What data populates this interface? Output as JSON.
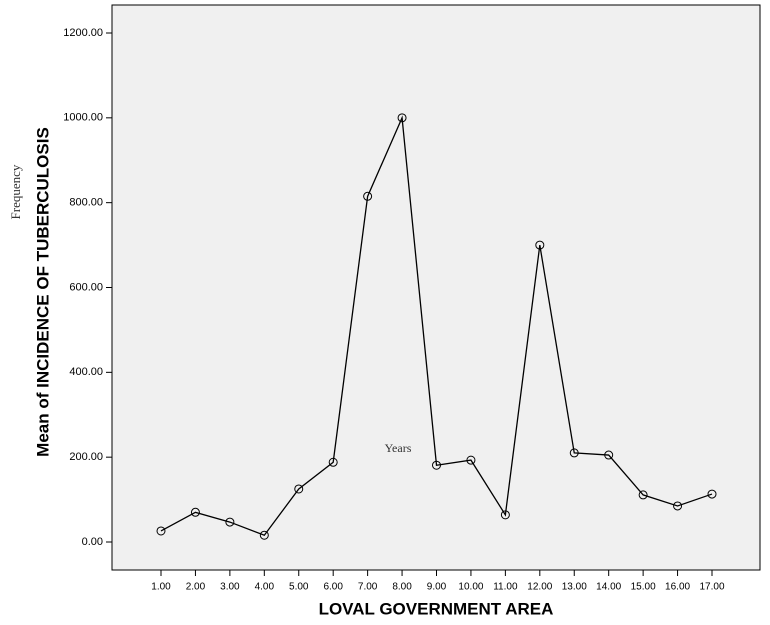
{
  "chart_data": {
    "type": "line",
    "y_label": "Mean of INCIDENCE OF TUBERCULOSIS",
    "x_label": "LOVAL GOVERNMENT AREA",
    "annotations": [
      "Frequency",
      "Years"
    ],
    "categories": [
      "1.00",
      "2.00",
      "3.00",
      "4.00",
      "5.00",
      "6.00",
      "7.00",
      "8.00",
      "9.00",
      "10.00",
      "11.00",
      "12.00",
      "13.00",
      "14.00",
      "15.00",
      "16.00",
      "17.00"
    ],
    "values": [
      26,
      70,
      47,
      16,
      125,
      188,
      815,
      1000,
      181,
      193,
      64,
      700,
      210,
      205,
      111,
      85,
      113
    ],
    "color": "#000000",
    "ylim": [
      -66,
      1266
    ],
    "yticks": [
      {
        "value": 0,
        "label": "0.00"
      },
      {
        "value": 200,
        "label": "200.00"
      },
      {
        "value": 400,
        "label": "400.00"
      },
      {
        "value": 600,
        "label": "600.00"
      },
      {
        "value": 800,
        "label": "800.00"
      },
      {
        "value": 1000,
        "label": "1000.00"
      },
      {
        "value": 1200,
        "label": "1200.00"
      }
    ]
  }
}
